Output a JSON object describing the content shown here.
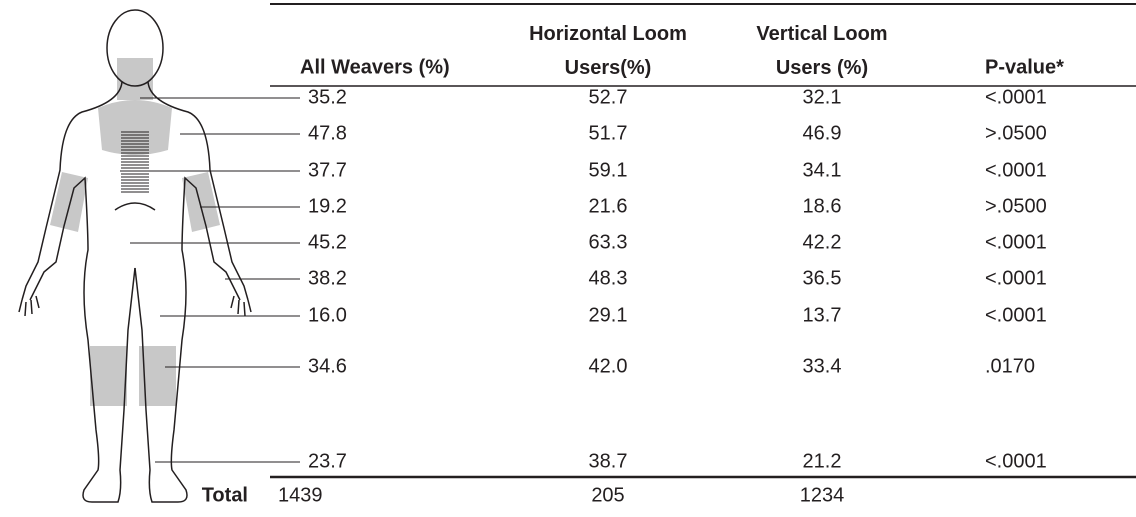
{
  "table": {
    "header": [
      "All Weavers (%)",
      "Horizontal Loom Users(%)",
      "Vertical Loom Users (%)",
      "P-value*"
    ],
    "rows": [
      [
        "35.2",
        "52.7",
        "32.1",
        "<.0001"
      ],
      [
        "47.8",
        "51.7",
        "46.9",
        ">.0500"
      ],
      [
        "37.7",
        "59.1",
        "34.1",
        "<.0001"
      ],
      [
        "19.2",
        "21.6",
        "18.6",
        ">.0500"
      ],
      [
        "45.2",
        "63.3",
        "42.2",
        "<.0001"
      ],
      [
        "38.2",
        "48.3",
        "36.5",
        "<.0001"
      ],
      [
        "16.0",
        "29.1",
        "13.7",
        "<.0001"
      ],
      [
        "34.6",
        "42.0",
        "33.4",
        ".0170"
      ],
      [
        "23.7",
        "38.7",
        "21.2",
        "<.0001"
      ]
    ],
    "total": {
      "label": "Total",
      "values": [
        "1439",
        "205",
        "1234"
      ]
    }
  }
}
